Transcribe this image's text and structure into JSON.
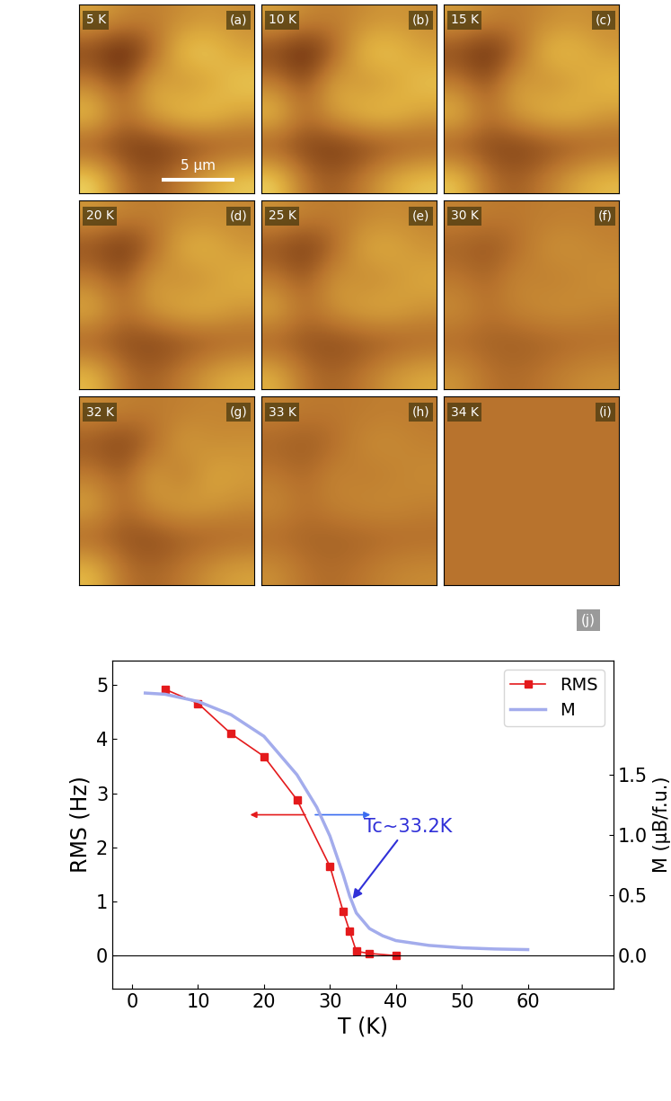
{
  "images": {
    "value_range": [
      0,
      1
    ],
    "field_of_view": 12,
    "scale_bar": {
      "label": "5 μm",
      "length": 5
    },
    "panels": [
      {
        "label": "(a)",
        "temperature": "5 K",
        "cells": [
          [
            0.7,
            0.6,
            0.55,
            0.6,
            0.65,
            0.6
          ],
          [
            0.3,
            0.15,
            0.4,
            0.85,
            0.85,
            0.7
          ],
          [
            0.55,
            0.35,
            0.75,
            0.6,
            0.7,
            0.85
          ],
          [
            0.85,
            0.5,
            0.7,
            0.85,
            0.85,
            0.7
          ],
          [
            0.35,
            0.3,
            0.25,
            0.3,
            0.35,
            0.4
          ],
          [
            0.9,
            0.5,
            0.4,
            0.55,
            0.75,
            0.85
          ]
        ]
      },
      {
        "label": "(b)",
        "temperature": "10 K",
        "cells": [
          [
            0.69,
            0.6,
            0.55,
            0.6,
            0.64,
            0.6
          ],
          [
            0.31,
            0.17,
            0.41,
            0.83,
            0.83,
            0.69
          ],
          [
            0.55,
            0.36,
            0.74,
            0.6,
            0.69,
            0.83
          ],
          [
            0.83,
            0.5,
            0.69,
            0.83,
            0.83,
            0.69
          ],
          [
            0.36,
            0.31,
            0.26,
            0.31,
            0.36,
            0.41
          ],
          [
            0.88,
            0.5,
            0.41,
            0.55,
            0.74,
            0.83
          ]
        ]
      },
      {
        "label": "(c)",
        "temperature": "15 K",
        "cells": [
          [
            0.67,
            0.59,
            0.54,
            0.59,
            0.63,
            0.59
          ],
          [
            0.33,
            0.2,
            0.42,
            0.8,
            0.8,
            0.67
          ],
          [
            0.54,
            0.37,
            0.71,
            0.59,
            0.67,
            0.8
          ],
          [
            0.8,
            0.5,
            0.67,
            0.8,
            0.8,
            0.67
          ],
          [
            0.37,
            0.33,
            0.29,
            0.33,
            0.37,
            0.42
          ],
          [
            0.84,
            0.5,
            0.42,
            0.54,
            0.71,
            0.8
          ]
        ]
      },
      {
        "label": "(d)",
        "temperature": "20 K",
        "cells": [
          [
            0.65,
            0.58,
            0.54,
            0.58,
            0.61,
            0.58
          ],
          [
            0.35,
            0.24,
            0.43,
            0.76,
            0.76,
            0.65
          ],
          [
            0.54,
            0.39,
            0.69,
            0.58,
            0.65,
            0.76
          ],
          [
            0.76,
            0.5,
            0.65,
            0.76,
            0.76,
            0.65
          ],
          [
            0.39,
            0.35,
            0.31,
            0.35,
            0.39,
            0.43
          ],
          [
            0.8,
            0.5,
            0.43,
            0.54,
            0.69,
            0.76
          ]
        ]
      },
      {
        "label": "(e)",
        "temperature": "25 K",
        "cells": [
          [
            0.63,
            0.57,
            0.53,
            0.57,
            0.6,
            0.57
          ],
          [
            0.37,
            0.27,
            0.44,
            0.73,
            0.73,
            0.63
          ],
          [
            0.53,
            0.4,
            0.66,
            0.57,
            0.63,
            0.73
          ],
          [
            0.73,
            0.5,
            0.63,
            0.73,
            0.73,
            0.63
          ],
          [
            0.4,
            0.37,
            0.34,
            0.37,
            0.4,
            0.44
          ],
          [
            0.76,
            0.5,
            0.44,
            0.53,
            0.66,
            0.73
          ]
        ]
      },
      {
        "label": "(f)",
        "temperature": "30 K",
        "cells": [
          [
            0.57,
            0.54,
            0.52,
            0.54,
            0.55,
            0.54
          ],
          [
            0.43,
            0.38,
            0.47,
            0.62,
            0.62,
            0.57
          ],
          [
            0.52,
            0.45,
            0.59,
            0.54,
            0.57,
            0.62
          ],
          [
            0.62,
            0.5,
            0.57,
            0.62,
            0.62,
            0.57
          ],
          [
            0.45,
            0.43,
            0.41,
            0.43,
            0.45,
            0.47
          ],
          [
            0.64,
            0.5,
            0.47,
            0.52,
            0.59,
            0.62
          ]
        ]
      },
      {
        "label": "(g)",
        "temperature": "32 K",
        "cells": [
          [
            0.6,
            0.56,
            0.53,
            0.55,
            0.58,
            0.56
          ],
          [
            0.38,
            0.3,
            0.45,
            0.68,
            0.6,
            0.62
          ],
          [
            0.53,
            0.42,
            0.7,
            0.5,
            0.72,
            0.68
          ],
          [
            0.72,
            0.46,
            0.62,
            0.7,
            0.66,
            0.6
          ],
          [
            0.42,
            0.38,
            0.34,
            0.4,
            0.42,
            0.45
          ],
          [
            0.8,
            0.5,
            0.45,
            0.52,
            0.64,
            0.7
          ]
        ]
      },
      {
        "label": "(h)",
        "temperature": "33 K",
        "cells": [
          [
            0.56,
            0.53,
            0.52,
            0.53,
            0.55,
            0.53
          ],
          [
            0.44,
            0.4,
            0.47,
            0.6,
            0.6,
            0.56
          ],
          [
            0.52,
            0.46,
            0.58,
            0.53,
            0.56,
            0.6
          ],
          [
            0.6,
            0.5,
            0.56,
            0.6,
            0.6,
            0.56
          ],
          [
            0.46,
            0.44,
            0.43,
            0.44,
            0.46,
            0.47
          ],
          [
            0.62,
            0.5,
            0.47,
            0.52,
            0.58,
            0.6
          ]
        ]
      },
      {
        "label": "(i)",
        "temperature": "34 K",
        "cells": [
          [
            0.5,
            0.5,
            0.5,
            0.5,
            0.5,
            0.5
          ],
          [
            0.5,
            0.5,
            0.5,
            0.5,
            0.5,
            0.5
          ],
          [
            0.5,
            0.5,
            0.5,
            0.5,
            0.5,
            0.5
          ],
          [
            0.5,
            0.5,
            0.5,
            0.5,
            0.5,
            0.5
          ],
          [
            0.5,
            0.5,
            0.5,
            0.5,
            0.5,
            0.5
          ],
          [
            0.5,
            0.5,
            0.5,
            0.5,
            0.5,
            0.5
          ]
        ]
      }
    ]
  },
  "chart_data": {
    "type": "line",
    "panel_label": "(j)",
    "xlabel": "T (K)",
    "ylabel": "RMS (Hz)",
    "y2label": "M (μB/f.u.)",
    "xlim": [
      -3,
      73
    ],
    "xticks": [
      0,
      10,
      20,
      30,
      40,
      50,
      60
    ],
    "ylim": [
      -0.61,
      5.45
    ],
    "yticks": [
      0,
      1,
      2,
      3,
      4,
      5
    ],
    "y2lim": [
      -0.28,
      2.45
    ],
    "y2ticks": [
      0.0,
      0.5,
      1.0,
      1.5
    ],
    "hline": 0,
    "legend": "upper right",
    "series": [
      {
        "name": "RMS",
        "color": "#e41a1c",
        "marker": "square",
        "line_style": "solid",
        "x": [
          5,
          10,
          15,
          20,
          25,
          30,
          32,
          33,
          34,
          36,
          40
        ],
        "values": [
          4.92,
          4.66,
          4.1,
          3.68,
          2.88,
          1.65,
          0.82,
          0.45,
          0.08,
          0.04,
          0.0
        ]
      },
      {
        "name": "M",
        "color": "#a3acec",
        "marker": "none",
        "line_style": "solid",
        "axis": "y2",
        "x": [
          2,
          5,
          10,
          15,
          20,
          25,
          28,
          30,
          32,
          33,
          34,
          36,
          38,
          40,
          45,
          50,
          55,
          60
        ],
        "values": [
          2.18,
          2.17,
          2.11,
          2.0,
          1.82,
          1.5,
          1.23,
          0.99,
          0.67,
          0.49,
          0.35,
          0.22,
          0.16,
          0.12,
          0.08,
          0.06,
          0.05,
          0.045
        ]
      }
    ],
    "annotation": {
      "text": "Tc~33.2K",
      "x": 33.2,
      "y": 0.45,
      "color": "#3030d8"
    }
  }
}
